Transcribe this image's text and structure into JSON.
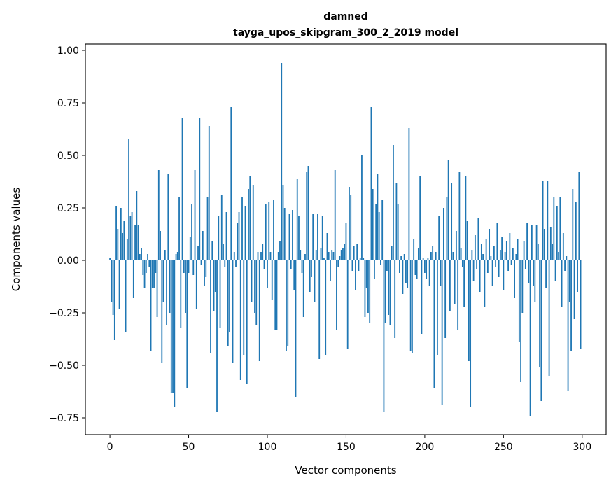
{
  "chart_data": {
    "type": "bar",
    "title": "damned",
    "subtitle": "tayga_upos_skipgram_300_2_2019 model",
    "xlabel": "Vector components",
    "ylabel": "Components values",
    "xlim": [
      -15.6,
      315.2
    ],
    "ylim": [
      -0.83,
      1.03
    ],
    "xticks": [
      0,
      50,
      100,
      150,
      200,
      250,
      300
    ],
    "xtick_labels": [
      "0",
      "50",
      "100",
      "150",
      "200",
      "250",
      "300"
    ],
    "yticks": [
      1.0,
      0.75,
      0.5,
      0.25,
      0.0,
      -0.25,
      -0.5,
      -0.75
    ],
    "ytick_labels": [
      "1.00",
      "0.75",
      "0.50",
      "0.25",
      "0.00",
      "−0.25",
      "−0.50",
      "−0.75"
    ],
    "grid": false,
    "bar_color": "#1f77b4",
    "values": [
      0.01,
      -0.2,
      -0.26,
      -0.38,
      0.26,
      0.15,
      -0.23,
      0.25,
      0.13,
      0.19,
      -0.34,
      0.1,
      0.58,
      0.21,
      0.23,
      -0.18,
      0.17,
      0.33,
      0.17,
      0.03,
      0.06,
      -0.07,
      -0.13,
      -0.06,
      0.03,
      -0.03,
      -0.43,
      -0.13,
      -0.13,
      -0.06,
      -0.27,
      0.43,
      0.14,
      -0.49,
      -0.2,
      0.05,
      -0.31,
      0.41,
      -0.25,
      -0.63,
      -0.63,
      -0.7,
      0.03,
      0.04,
      0.3,
      -0.32,
      0.68,
      -0.06,
      -0.25,
      -0.61,
      -0.06,
      0.11,
      0.27,
      -0.07,
      0.43,
      -0.23,
      0.07,
      0.68,
      -0.02,
      0.14,
      -0.12,
      -0.08,
      0.3,
      0.64,
      -0.44,
      0.09,
      -0.24,
      -0.15,
      -0.72,
      0.21,
      -0.32,
      0.31,
      0.08,
      -0.03,
      0.23,
      -0.41,
      -0.34,
      0.73,
      -0.49,
      0.04,
      -0.03,
      0.18,
      0.23,
      -0.57,
      0.3,
      -0.45,
      0.26,
      -0.59,
      0.34,
      0.4,
      -0.2,
      0.36,
      -0.25,
      -0.31,
      0.04,
      -0.48,
      0.04,
      0.08,
      -0.04,
      0.27,
      -0.13,
      0.28,
      0.04,
      -0.19,
      0.29,
      -0.33,
      -0.33,
      0.04,
      0.09,
      0.94,
      0.36,
      0.25,
      -0.43,
      -0.41,
      0.22,
      -0.04,
      0.24,
      -0.14,
      -0.65,
      0.39,
      0.21,
      0.05,
      -0.06,
      -0.27,
      0.03,
      0.42,
      0.45,
      -0.15,
      -0.08,
      0.22,
      -0.2,
      0.05,
      0.22,
      -0.47,
      0.06,
      0.21,
      0.01,
      -0.45,
      0.13,
      0.04,
      -0.1,
      0.05,
      0.04,
      0.43,
      -0.33,
      -0.03,
      0.02,
      0.05,
      0.06,
      0.08,
      0.18,
      -0.42,
      0.35,
      0.31,
      -0.05,
      0.07,
      -0.14,
      0.08,
      -0.05,
      0.01,
      0.5,
      0.01,
      -0.27,
      -0.13,
      -0.25,
      -0.3,
      0.73,
      0.34,
      -0.09,
      0.27,
      0.41,
      0.23,
      -0.02,
      0.29,
      -0.72,
      -0.3,
      -0.05,
      -0.26,
      -0.31,
      0.07,
      0.55,
      -0.37,
      0.37,
      0.27,
      -0.06,
      0.02,
      -0.16,
      0.03,
      -0.11,
      -0.13,
      0.63,
      -0.43,
      -0.44,
      0.1,
      -0.07,
      -0.09,
      0.06,
      0.4,
      -0.35,
      0.01,
      -0.06,
      -0.09,
      0.01,
      -0.12,
      0.04,
      0.07,
      -0.61,
      0.04,
      -0.45,
      0.21,
      -0.12,
      -0.69,
      0.25,
      -0.37,
      0.3,
      0.48,
      -0.24,
      0.37,
      0.04,
      -0.21,
      0.14,
      -0.33,
      0.42,
      0.06,
      -0.03,
      -0.22,
      0.4,
      0.19,
      -0.48,
      -0.7,
      0.05,
      -0.1,
      0.12,
      -0.04,
      0.2,
      -0.15,
      0.08,
      0.03,
      -0.22,
      0.1,
      -0.06,
      0.15,
      0.02,
      -0.12,
      0.07,
      -0.03,
      0.18,
      -0.08,
      0.05,
      0.11,
      -0.14,
      0.04,
      0.09,
      -0.05,
      0.13,
      -0.02,
      0.06,
      -0.18,
      0.03,
      0.1,
      -0.39,
      -0.58,
      -0.25,
      0.09,
      -0.04,
      0.18,
      -0.11,
      -0.74,
      0.17,
      -0.12,
      -0.2,
      0.17,
      0.08,
      -0.51,
      -0.67,
      0.38,
      0.15,
      -0.13,
      0.38,
      -0.55,
      0.16,
      0.08,
      0.3,
      -0.1,
      0.26,
      0.04,
      0.3,
      -0.22,
      0.13,
      -0.05,
      0.02,
      -0.62,
      -0.2,
      -0.43,
      0.34,
      -0.28,
      0.28,
      -0.15,
      0.42,
      -0.42
    ]
  }
}
